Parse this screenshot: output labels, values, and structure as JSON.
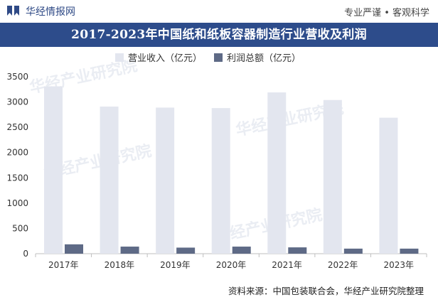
{
  "header": {
    "brand": "华经情报网",
    "slogan": "专业严谨 • 客观科学",
    "logo_icon": "bookmark-logo-icon"
  },
  "title": "2017-2023年中国纸和纸板容器制造行业营收及利润",
  "source": "资料来源：中国包装联合会，华经产业研究院整理",
  "colors": {
    "title_bg": "#2d4c8b",
    "revenue": "#e3e6ef",
    "profit": "#5e6a86"
  },
  "chart_data": {
    "type": "bar",
    "categories": [
      "2017年",
      "2018年",
      "2019年",
      "2020年",
      "2021年",
      "2022年",
      "2023年"
    ],
    "series": [
      {
        "name": "营业收入（亿元）",
        "values": [
          3310,
          2910,
          2890,
          2880,
          3190,
          3040,
          2690
        ]
      },
      {
        "name": "利润总额（亿元）",
        "values": [
          185,
          140,
          120,
          140,
          125,
          100,
          100
        ]
      }
    ],
    "ylim": [
      0,
      3500
    ],
    "yticks": [
      "0",
      "500",
      "1000",
      "1500",
      "2000",
      "2500",
      "3000",
      "3500"
    ],
    "grid": false,
    "legend": "top-center"
  },
  "watermarks": [
    "华经产业研究院",
    "华经产业研究院",
    "华经产业研究院",
    "华经产业研究院"
  ]
}
